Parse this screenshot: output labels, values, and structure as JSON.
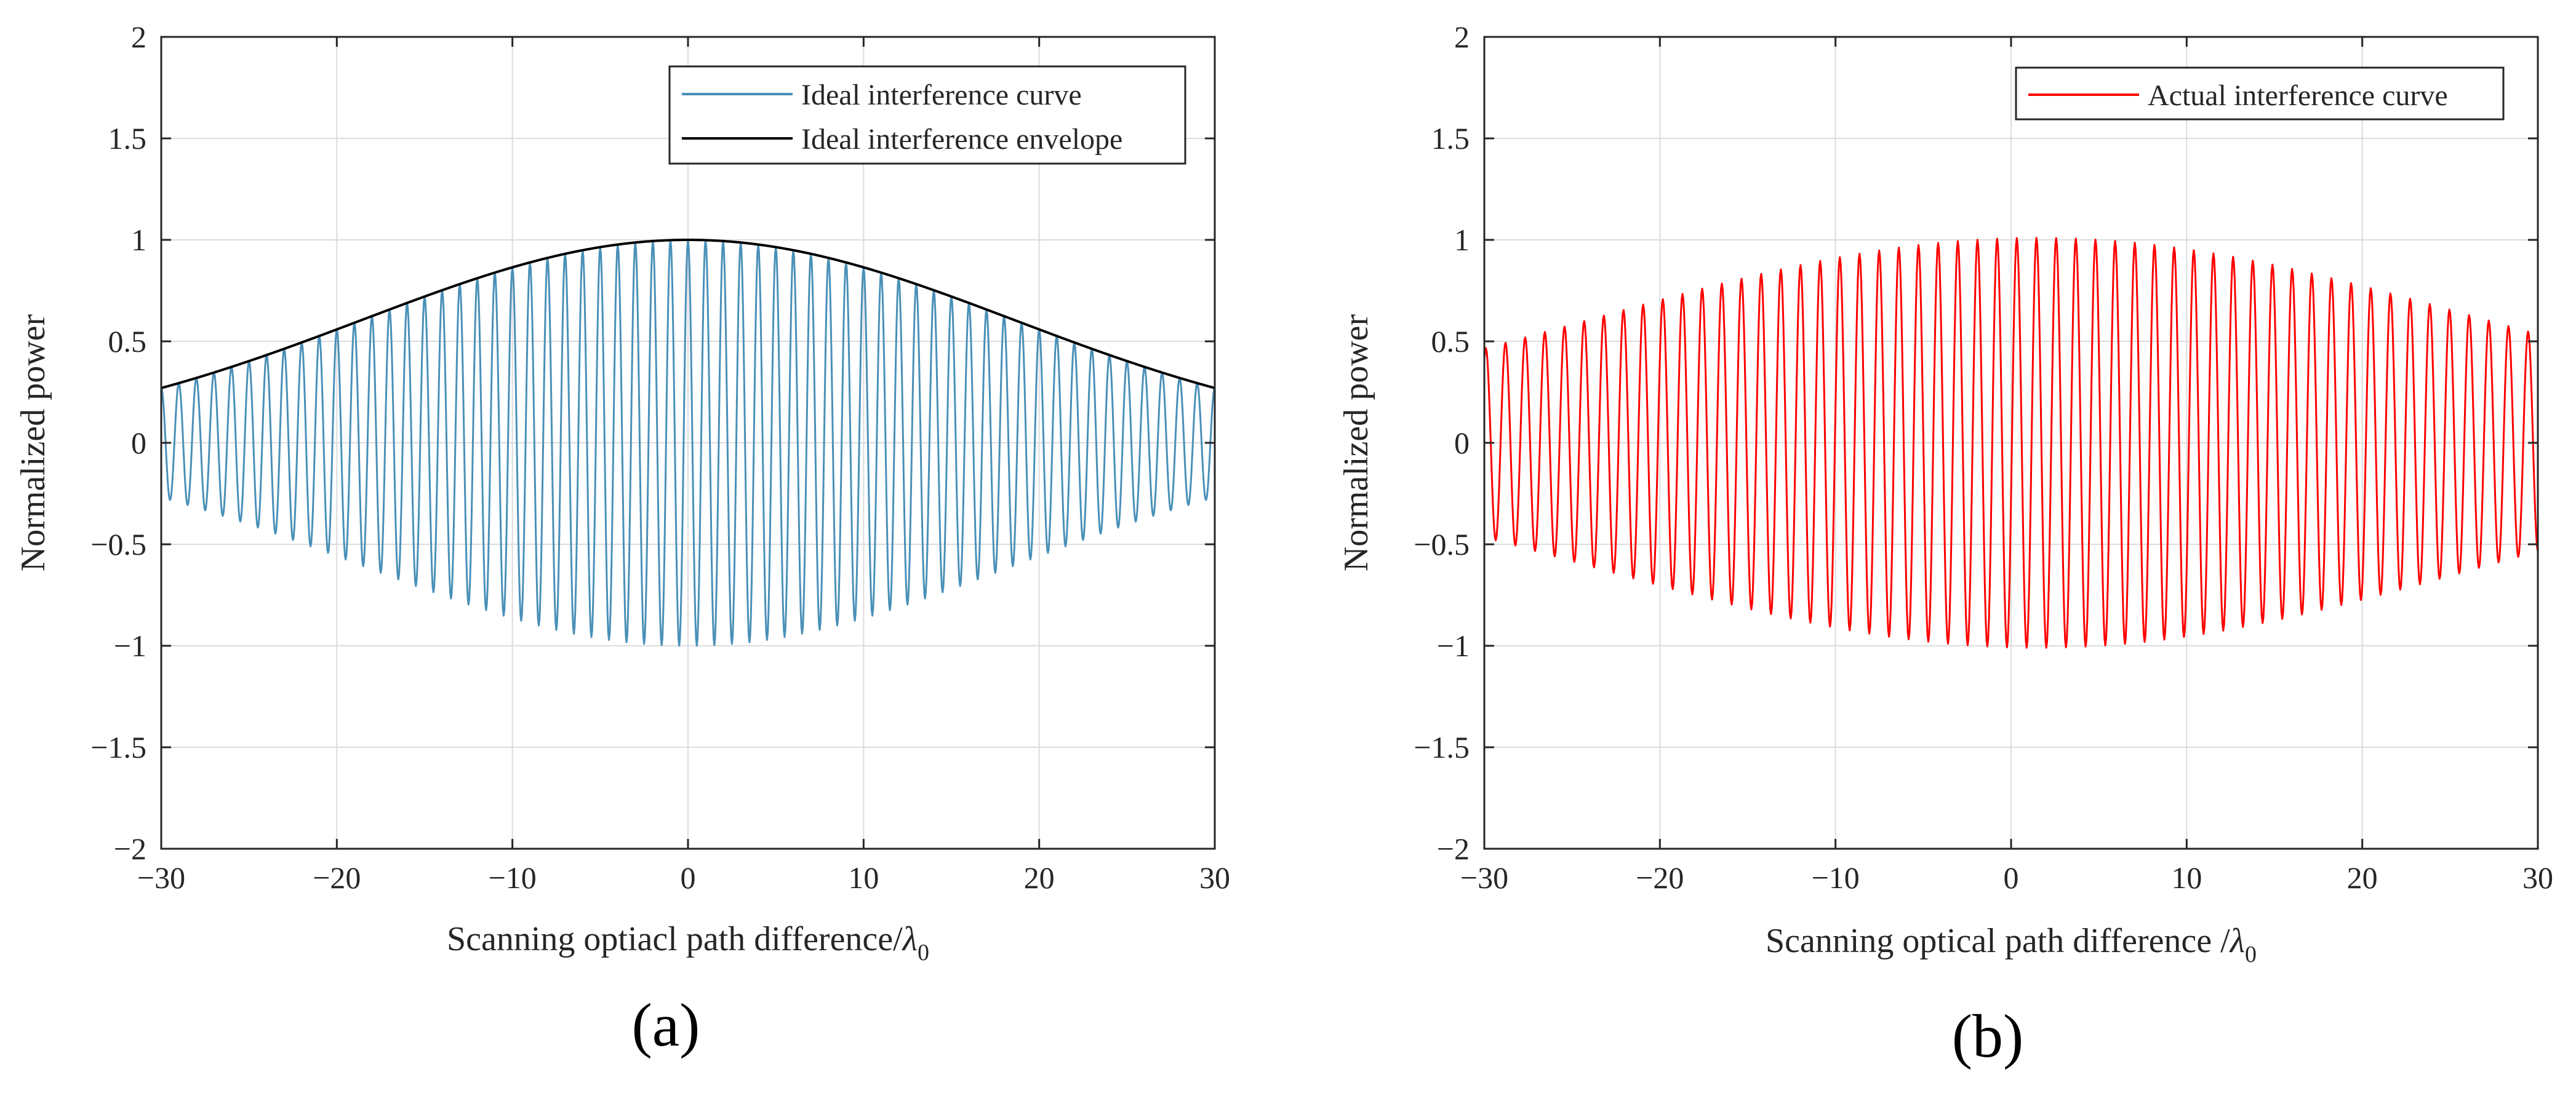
{
  "chart_data": [
    {
      "type": "line",
      "panel_label": "(a)",
      "title": "",
      "xlabel": "Scanning optiacl path difference/",
      "xlabel_symbol": "λ",
      "xlabel_sub": "0",
      "ylabel": "Normalized power",
      "xlim": [
        -30,
        30
      ],
      "ylim": [
        -2,
        2
      ],
      "xticks": [
        -30,
        -20,
        -10,
        0,
        10,
        20,
        30
      ],
      "xtick_labels": [
        "−30",
        "−20",
        "−10",
        "0",
        "10",
        "20",
        "30"
      ],
      "yticks": [
        -2,
        -1.5,
        -1,
        -0.5,
        0,
        0.5,
        1,
        1.5,
        2
      ],
      "ytick_labels": [
        "−2",
        "−1.5",
        "−1",
        "−0.5",
        "0",
        "0.5",
        "1",
        "1.5",
        "2"
      ],
      "grid": true,
      "legend_position": "top-right",
      "series": [
        {
          "name": "Ideal interference curve",
          "color": "#4a90b8",
          "model": "envelope_times_cosine",
          "amplitude": 1.0,
          "center": 0,
          "envelope_half_width_at_x30": 0.27,
          "period": 1,
          "phase_offset": 0,
          "samples_per_period": 24
        },
        {
          "name": "Ideal interference envelope",
          "color": "#000000",
          "model": "gaussian",
          "amplitude": 1.0,
          "center": 0,
          "value_at_x30": 0.27
        }
      ]
    },
    {
      "type": "line",
      "panel_label": "(b)",
      "title": "",
      "xlabel": "Scanning optical path difference /",
      "xlabel_symbol": "λ",
      "xlabel_sub": "0",
      "ylabel": "Normalized power",
      "xlim": [
        -30,
        30
      ],
      "ylim": [
        -2,
        2
      ],
      "xticks": [
        -30,
        -20,
        -10,
        0,
        10,
        20,
        30
      ],
      "xtick_labels": [
        "−30",
        "−20",
        "−10",
        "0",
        "10",
        "20",
        "30"
      ],
      "yticks": [
        -2,
        -1.5,
        -1,
        -0.5,
        0,
        0.5,
        1,
        1.5,
        2
      ],
      "ytick_labels": [
        "−2",
        "−1.5",
        "−1",
        "−0.5",
        "0",
        "0.5",
        "1",
        "1.5",
        "2"
      ],
      "grid": true,
      "legend_position": "top-right",
      "series": [
        {
          "name": "Actual interference curve",
          "color": "#ff0000",
          "model": "envelope_times_cosine",
          "amplitude": 1.01,
          "center": 1.5,
          "envelope_half_width_at_x30": 0.5,
          "period": 1.12,
          "phase_offset": 0.3,
          "samples_per_period": 24
        }
      ]
    }
  ]
}
